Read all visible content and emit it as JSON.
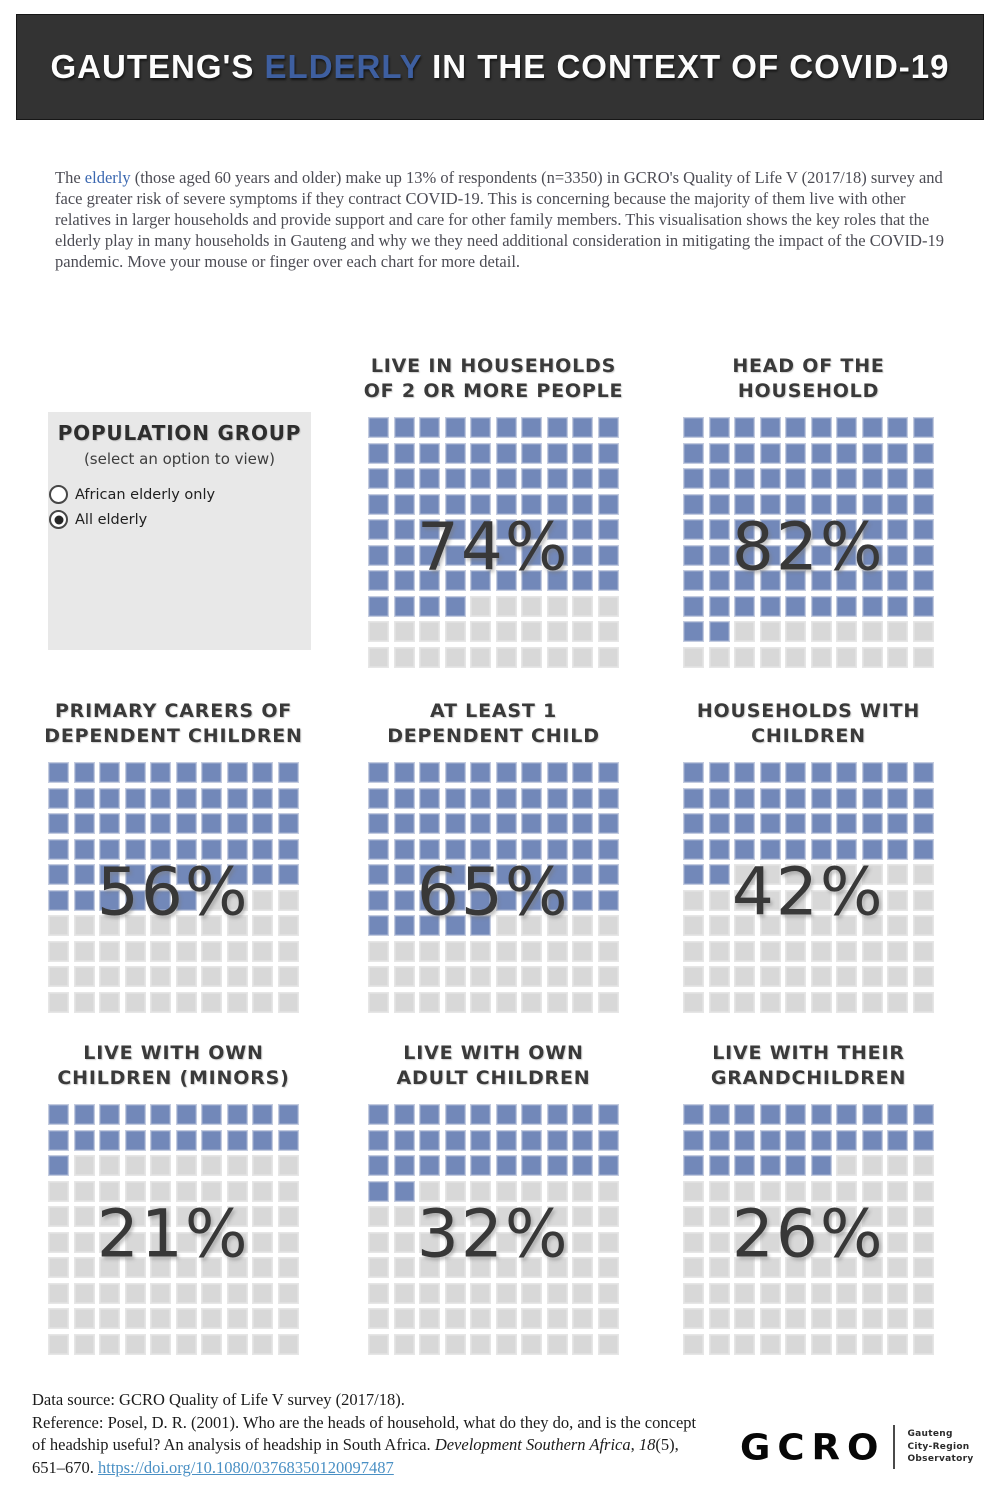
{
  "header": {
    "title_prefix": "GAUTENG'S ",
    "title_highlight": "ELDERLY",
    "title_suffix": " IN THE CONTEXT OF COVID-19"
  },
  "intro": {
    "lead": "The ",
    "link_text": "elderly",
    "body": " (those aged 60 years and older) make up 13% of respondents (n=3350) in GCRO's Quality of Life V (2017/18) survey and face greater risk of severe symptoms if they contract COVID-19. This is concerning because the majority of them live with other relatives in larger households and provide support and care for other family members. This visualisation shows the key roles that the elderly play in many households in Gauteng and why we they need additional consideration in mitigating the impact of the COVID-19 pandemic. Move your mouse or finger over each chart for more detail."
  },
  "population_group": {
    "title": "POPULATION GROUP",
    "subtitle": "(select an option to view)",
    "options": [
      {
        "label": "African elderly only",
        "selected": false
      },
      {
        "label": "All elderly",
        "selected": true
      }
    ]
  },
  "chart_data": [
    {
      "type": "waffle",
      "id": "households-2-or-more",
      "title_lines": [
        "LIVE IN HOUSEHOLDS",
        "OF 2 OR MORE PEOPLE"
      ],
      "value": 74,
      "label": "74%",
      "grid_rows": 10,
      "grid_cols": 10,
      "unit": "1 square = 1% of elderly",
      "row": 1,
      "col": 2
    },
    {
      "type": "waffle",
      "id": "head-of-household",
      "title_lines": [
        "HEAD OF THE",
        "HOUSEHOLD"
      ],
      "value": 82,
      "label": "82%",
      "grid_rows": 10,
      "grid_cols": 10,
      "unit": "1 square = 1% of elderly",
      "row": 1,
      "col": 3
    },
    {
      "type": "waffle",
      "id": "primary-carers",
      "title_lines": [
        "PRIMARY CARERS OF",
        "DEPENDENT CHILDREN"
      ],
      "value": 56,
      "label": "56%",
      "grid_rows": 10,
      "grid_cols": 10,
      "unit": "1 square = 1% of elderly",
      "row": 2,
      "col": 1
    },
    {
      "type": "waffle",
      "id": "at-least-1-dependent-child",
      "title_lines": [
        "AT LEAST 1",
        "DEPENDENT CHILD"
      ],
      "value": 65,
      "label": "65%",
      "grid_rows": 10,
      "grid_cols": 10,
      "unit": "1 square = 1% of elderly",
      "row": 2,
      "col": 2
    },
    {
      "type": "waffle",
      "id": "households-with-children",
      "title_lines": [
        "HOUSEHOLDS WITH",
        "CHILDREN"
      ],
      "value": 42,
      "label": "42%",
      "grid_rows": 10,
      "grid_cols": 10,
      "unit": "1 square = 1% of elderly",
      "row": 2,
      "col": 3
    },
    {
      "type": "waffle",
      "id": "live-with-own-children-minors",
      "title_lines": [
        "LIVE WITH OWN",
        "CHILDREN (MINORS)"
      ],
      "value": 21,
      "label": "21%",
      "grid_rows": 10,
      "grid_cols": 10,
      "unit": "1 square = 1% of elderly",
      "row": 3,
      "col": 1
    },
    {
      "type": "waffle",
      "id": "live-with-own-adult-children",
      "title_lines": [
        "LIVE WITH OWN",
        "ADULT CHILDREN"
      ],
      "value": 32,
      "label": "32%",
      "grid_rows": 10,
      "grid_cols": 10,
      "unit": "1 square = 1% of elderly",
      "row": 3,
      "col": 2
    },
    {
      "type": "waffle",
      "id": "live-with-grandchildren",
      "title_lines": [
        "LIVE WITH THEIR",
        "GRANDCHILDREN"
      ],
      "value": 26,
      "label": "26%",
      "grid_rows": 10,
      "grid_cols": 10,
      "unit": "1 square = 1% of elderly",
      "row": 3,
      "col": 3
    }
  ],
  "colors": {
    "header_bg": "#333333",
    "highlight": "#3e5fa0",
    "intro_link": "#3a67b0",
    "filled": "#7288b9",
    "filled_border": "#c3cbdf",
    "empty": "#d8d8d8",
    "empty_border": "#e6e6e6",
    "footer_link": "#4a90c4",
    "panel_bg": "#e8e8e8"
  },
  "footer": {
    "line1": "Data source: GCRO Quality of Life V survey (2017/18).",
    "line2": "Reference: Posel, D. R. (2001). Who are the heads of household, what do they do, and is the concept",
    "line3_normal": "of headship useful? An analysis of headship in South Africa. ",
    "line3_italic1": "Development Southern Africa",
    "line3_sep": ", ",
    "line3_italic2": "18",
    "line3_end": "(5),",
    "line4_start": "651–670. ",
    "line4_link": "https://doi.org/10.1080/03768350120097487"
  },
  "logo": {
    "wordmark": "GCRO",
    "tagline_lines": [
      "Gauteng",
      "City-Region",
      "Observatory"
    ]
  }
}
